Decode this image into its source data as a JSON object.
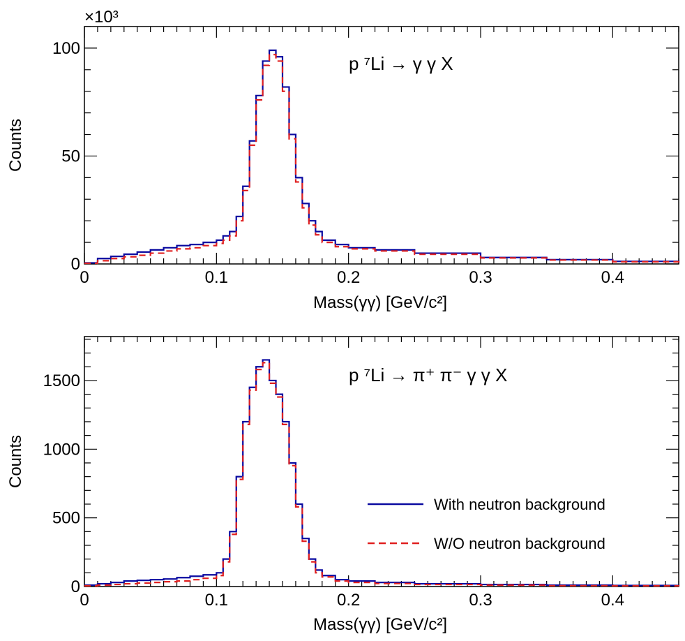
{
  "chart_data": [
    {
      "type": "line",
      "subtype": "step-histogram",
      "annotation": "p ⁷Li → γ γ X",
      "xlabel": "Mass(γγ) [GeV/c²]",
      "ylabel": "Counts",
      "y_multiplier": "×10³",
      "xlim": [
        0,
        0.45
      ],
      "ylim": [
        0,
        110
      ],
      "xticks": [
        "0",
        "0.1",
        "0.2",
        "0.3",
        "0.4"
      ],
      "yticks": [
        "0",
        "50",
        "100"
      ],
      "grid": false,
      "colors": {
        "with": "#0a0aa0",
        "without": "#e02020"
      },
      "series": [
        {
          "name": "With neutron background",
          "x": [
            0.0,
            0.01,
            0.02,
            0.03,
            0.04,
            0.05,
            0.06,
            0.07,
            0.08,
            0.09,
            0.1,
            0.105,
            0.11,
            0.115,
            0.12,
            0.125,
            0.13,
            0.135,
            0.14,
            0.145,
            0.15,
            0.155,
            0.16,
            0.165,
            0.17,
            0.175,
            0.18,
            0.19,
            0.2,
            0.22,
            0.25,
            0.3,
            0.35,
            0.4,
            0.45
          ],
          "values": [
            0.5,
            2.5,
            3.5,
            4.5,
            5.5,
            6.5,
            7.5,
            8.5,
            9.0,
            10.0,
            11.0,
            13.0,
            15.0,
            22.0,
            36.0,
            57.0,
            78.0,
            94.0,
            99.0,
            96.0,
            82.0,
            60.0,
            40.0,
            28.0,
            20.0,
            15.0,
            11.0,
            9.0,
            7.5,
            6.5,
            5.0,
            3.0,
            2.0,
            1.2,
            0.5
          ]
        },
        {
          "name": "W/O neutron background",
          "x": [
            0.0,
            0.01,
            0.02,
            0.03,
            0.04,
            0.05,
            0.06,
            0.07,
            0.08,
            0.09,
            0.1,
            0.105,
            0.11,
            0.115,
            0.12,
            0.125,
            0.13,
            0.135,
            0.14,
            0.145,
            0.15,
            0.155,
            0.16,
            0.165,
            0.17,
            0.175,
            0.18,
            0.19,
            0.2,
            0.22,
            0.25,
            0.3,
            0.35,
            0.4,
            0.45
          ],
          "values": [
            0.3,
            1.5,
            2.5,
            3.3,
            4.0,
            5.0,
            6.0,
            7.0,
            7.5,
            8.5,
            9.5,
            11.0,
            13.0,
            20.0,
            34.0,
            55.0,
            76.0,
            92.0,
            97.0,
            94.0,
            80.0,
            58.0,
            38.0,
            26.0,
            18.0,
            13.5,
            10.0,
            8.0,
            7.0,
            6.0,
            4.5,
            2.8,
            1.8,
            1.0,
            0.4
          ]
        }
      ]
    },
    {
      "type": "line",
      "subtype": "step-histogram",
      "annotation": "p ⁷Li → π⁺ π⁻ γ γ X",
      "xlabel": "Mass(γγ) [GeV/c²]",
      "ylabel": "Counts",
      "xlim": [
        0,
        0.45
      ],
      "ylim": [
        0,
        1820
      ],
      "xticks": [
        "0",
        "0.1",
        "0.2",
        "0.3",
        "0.4"
      ],
      "yticks": [
        "0",
        "500",
        "1000",
        "1500"
      ],
      "grid": false,
      "legend": {
        "position": "bottom-right",
        "entries": [
          "With neutron background",
          "W/O neutron background"
        ]
      },
      "colors": {
        "with": "#0a0aa0",
        "without": "#e02020"
      },
      "series": [
        {
          "name": "With neutron background",
          "x": [
            0.0,
            0.01,
            0.02,
            0.03,
            0.04,
            0.05,
            0.06,
            0.07,
            0.08,
            0.09,
            0.1,
            0.105,
            0.11,
            0.115,
            0.12,
            0.125,
            0.13,
            0.135,
            0.14,
            0.145,
            0.15,
            0.155,
            0.16,
            0.165,
            0.17,
            0.175,
            0.18,
            0.19,
            0.2,
            0.22,
            0.25,
            0.3,
            0.35,
            0.4,
            0.45
          ],
          "values": [
            10,
            20,
            30,
            40,
            45,
            50,
            55,
            65,
            75,
            85,
            100,
            200,
            400,
            800,
            1200,
            1450,
            1600,
            1650,
            1500,
            1400,
            1200,
            900,
            600,
            350,
            200,
            120,
            80,
            50,
            40,
            30,
            20,
            15,
            10,
            8,
            5
          ]
        },
        {
          "name": "W/O neutron background",
          "x": [
            0.0,
            0.01,
            0.02,
            0.03,
            0.04,
            0.05,
            0.06,
            0.07,
            0.08,
            0.09,
            0.1,
            0.105,
            0.11,
            0.115,
            0.12,
            0.125,
            0.13,
            0.135,
            0.14,
            0.145,
            0.15,
            0.155,
            0.16,
            0.165,
            0.17,
            0.175,
            0.18,
            0.19,
            0.2,
            0.22,
            0.25,
            0.3,
            0.35,
            0.4,
            0.45
          ],
          "values": [
            5,
            10,
            15,
            20,
            25,
            30,
            35,
            40,
            50,
            60,
            80,
            180,
            380,
            780,
            1180,
            1430,
            1580,
            1630,
            1480,
            1380,
            1180,
            880,
            580,
            330,
            180,
            100,
            70,
            40,
            30,
            22,
            15,
            10,
            6,
            5,
            3
          ]
        }
      ]
    }
  ]
}
